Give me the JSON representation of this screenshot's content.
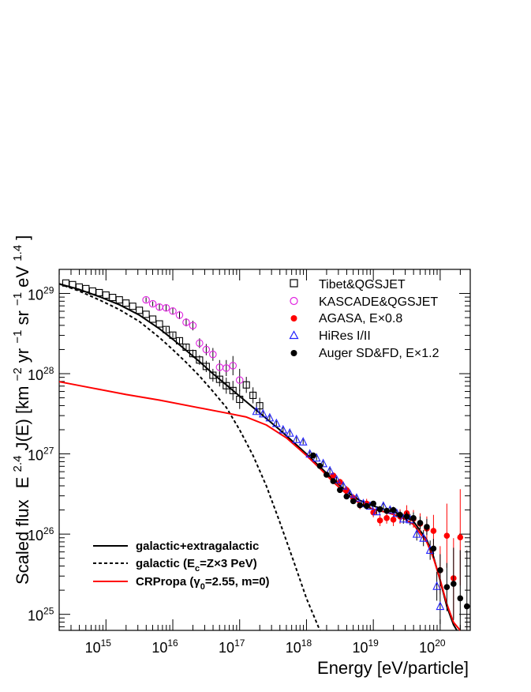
{
  "chart_data": {
    "type": "scatter",
    "title": "",
    "xlabel": "Energy [eV/particle]",
    "ylabel": "Scaled flux  E^2.4 J(E) [km^-2 yr^-1 sr^-1 eV^1.4]",
    "ylabel_parts": {
      "prefix": "Scaled flux",
      "e": "E",
      "e_exp": "2.4",
      "je": " J(E) [km",
      "km_exp": "−2",
      "yr": "yr",
      "yr_exp": "−1",
      "sr": "sr",
      "sr_exp": "−1",
      "ev": "eV",
      "ev_exp": "1.4",
      "close": "]"
    },
    "xlabel_log10_range": [
      14.3,
      20.45
    ],
    "ylabel_log10_range": [
      24.8,
      29.3
    ],
    "x_ticks": [
      {
        "base": "10",
        "exp": "15",
        "log10": 15
      },
      {
        "base": "10",
        "exp": "16",
        "log10": 16
      },
      {
        "base": "10",
        "exp": "17",
        "log10": 17
      },
      {
        "base": "10",
        "exp": "18",
        "log10": 18
      },
      {
        "base": "10",
        "exp": "19",
        "log10": 19
      },
      {
        "base": "10",
        "exp": "20",
        "log10": 20
      }
    ],
    "y_ticks": [
      {
        "base": "10",
        "exp": "25",
        "log10": 25
      },
      {
        "base": "10",
        "exp": "26",
        "log10": 26
      },
      {
        "base": "10",
        "exp": "27",
        "log10": 27
      },
      {
        "base": "10",
        "exp": "28",
        "log10": 28
      },
      {
        "base": "10",
        "exp": "29",
        "log10": 29
      }
    ],
    "legend_markers": {
      "placement": "top-right",
      "entries": [
        {
          "label": "Tibet&QGSJET",
          "marker": "open-square",
          "color": "#000000"
        },
        {
          "label": "KASCADE&QGSJET",
          "marker": "open-circle",
          "color": "#e020e0"
        },
        {
          "label": "AGASA, E×0.8",
          "marker": "filled-circle",
          "color": "#ff0000"
        },
        {
          "label": "HiRes I/II",
          "marker": "open-triangle",
          "color": "#2020ff"
        },
        {
          "label": "Auger SD&FD, E×1.2",
          "marker": "filled-circle",
          "color": "#000000"
        }
      ]
    },
    "legend_lines": {
      "placement": "bottom-left",
      "entries": [
        {
          "label": "galactic+extragalactic",
          "style": "solid",
          "color": "#000000"
        },
        {
          "label_parts": {
            "pre": "galactic (E",
            "sub": "c",
            "post": "=Z×3 PeV)"
          },
          "style": "dashed",
          "color": "#000000"
        },
        {
          "label_parts": {
            "pre": "CRPropa (",
            "gamma": "γ",
            "sub": "0",
            "post": "=2.55, m=0)"
          },
          "style": "solid",
          "color": "#ff0000"
        }
      ]
    },
    "curves": [
      {
        "name": "galactic+extragalactic",
        "color": "#000000",
        "style": "solid",
        "points": [
          [
            14.3,
            29.12
          ],
          [
            14.6,
            29.05
          ],
          [
            14.9,
            28.96
          ],
          [
            15.2,
            28.86
          ],
          [
            15.5,
            28.73
          ],
          [
            15.8,
            28.56
          ],
          [
            16.0,
            28.43
          ],
          [
            16.2,
            28.29
          ],
          [
            16.4,
            28.15
          ],
          [
            16.6,
            28.0
          ],
          [
            16.8,
            27.86
          ],
          [
            17.0,
            27.72
          ],
          [
            17.2,
            27.58
          ],
          [
            17.4,
            27.44
          ],
          [
            17.6,
            27.3
          ],
          [
            17.8,
            27.15
          ],
          [
            18.0,
            27.0
          ],
          [
            18.2,
            26.84
          ],
          [
            18.4,
            26.68
          ],
          [
            18.6,
            26.53
          ],
          [
            18.8,
            26.42
          ],
          [
            19.0,
            26.35
          ],
          [
            19.2,
            26.3
          ],
          [
            19.4,
            26.25
          ],
          [
            19.6,
            26.16
          ],
          [
            19.8,
            25.93
          ],
          [
            19.9,
            25.72
          ],
          [
            20.0,
            25.42
          ],
          [
            20.1,
            25.1
          ],
          [
            20.2,
            24.87
          ],
          [
            20.25,
            24.8
          ]
        ]
      },
      {
        "name": "galactic (Ec=Zx3 PeV)",
        "color": "#000000",
        "style": "dashed",
        "points": [
          [
            14.3,
            29.12
          ],
          [
            14.6,
            29.03
          ],
          [
            14.9,
            28.92
          ],
          [
            15.2,
            28.8
          ],
          [
            15.5,
            28.65
          ],
          [
            15.8,
            28.45
          ],
          [
            16.0,
            28.3
          ],
          [
            16.2,
            28.14
          ],
          [
            16.4,
            27.97
          ],
          [
            16.6,
            27.78
          ],
          [
            16.8,
            27.58
          ],
          [
            17.0,
            27.3
          ],
          [
            17.2,
            26.98
          ],
          [
            17.4,
            26.6
          ],
          [
            17.6,
            26.15
          ],
          [
            17.8,
            25.68
          ],
          [
            18.0,
            25.2
          ],
          [
            18.2,
            24.8
          ]
        ]
      },
      {
        "name": "CRPropa",
        "color": "#ff0000",
        "style": "solid",
        "points": [
          [
            14.3,
            27.9
          ],
          [
            14.8,
            27.82
          ],
          [
            15.3,
            27.74
          ],
          [
            15.8,
            27.67
          ],
          [
            16.3,
            27.59
          ],
          [
            16.8,
            27.51
          ],
          [
            17.1,
            27.46
          ],
          [
            17.4,
            27.36
          ],
          [
            17.7,
            27.2
          ],
          [
            18.0,
            26.98
          ],
          [
            18.2,
            26.82
          ],
          [
            18.4,
            26.65
          ],
          [
            18.6,
            26.5
          ],
          [
            18.8,
            26.38
          ],
          [
            19.0,
            26.31
          ],
          [
            19.2,
            26.27
          ],
          [
            19.4,
            26.22
          ],
          [
            19.6,
            26.12
          ],
          [
            19.8,
            25.9
          ],
          [
            19.9,
            25.7
          ],
          [
            20.0,
            25.43
          ],
          [
            20.1,
            25.13
          ],
          [
            20.2,
            24.9
          ],
          [
            20.3,
            24.8
          ]
        ]
      }
    ],
    "series": [
      {
        "name": "Tibet&QGSJET",
        "marker": "open-square",
        "color": "#000000",
        "points": [
          [
            14.4,
            29.13,
            0
          ],
          [
            14.5,
            29.11,
            0
          ],
          [
            14.6,
            29.08,
            0
          ],
          [
            14.7,
            29.06,
            0
          ],
          [
            14.8,
            29.03,
            0
          ],
          [
            14.9,
            29.01,
            0
          ],
          [
            15.0,
            28.98,
            0
          ],
          [
            15.1,
            28.95,
            0
          ],
          [
            15.2,
            28.92,
            0
          ],
          [
            15.3,
            28.88,
            0
          ],
          [
            15.4,
            28.84,
            0
          ],
          [
            15.5,
            28.79,
            0
          ],
          [
            15.6,
            28.74,
            0
          ],
          [
            15.7,
            28.68,
            0
          ],
          [
            15.8,
            28.62,
            0
          ],
          [
            15.9,
            28.55,
            0.03
          ],
          [
            16.0,
            28.48,
            0.03
          ],
          [
            16.1,
            28.41,
            0.04
          ],
          [
            16.2,
            28.33,
            0.04
          ],
          [
            16.3,
            28.25,
            0.05
          ],
          [
            16.4,
            28.17,
            0.06
          ],
          [
            16.5,
            28.09,
            0.07
          ],
          [
            16.6,
            27.98,
            0.08
          ],
          [
            16.7,
            27.93,
            0.09
          ],
          [
            16.8,
            27.85,
            0.1
          ],
          [
            16.9,
            27.79,
            0.12
          ],
          [
            17.0,
            27.68,
            0.12
          ],
          [
            17.1,
            27.86,
            0.1
          ],
          [
            17.2,
            27.73,
            0.1
          ],
          [
            17.3,
            27.6,
            0.1
          ]
        ]
      },
      {
        "name": "KASCADE&QGSJET",
        "marker": "open-circle",
        "color": "#e020e0",
        "points": [
          [
            15.6,
            28.92,
            0.03
          ],
          [
            15.7,
            28.87,
            0.03
          ],
          [
            15.8,
            28.83,
            0.04
          ],
          [
            15.9,
            28.82,
            0.04
          ],
          [
            16.0,
            28.78,
            0.04
          ],
          [
            16.1,
            28.73,
            0.05
          ],
          [
            16.2,
            28.64,
            0.05
          ],
          [
            16.3,
            28.6,
            0.06
          ],
          [
            16.4,
            28.38,
            0.06
          ],
          [
            16.5,
            28.3,
            0.07
          ],
          [
            16.6,
            28.24,
            0.08
          ],
          [
            16.7,
            28.08,
            0.09
          ],
          [
            16.8,
            28.07,
            0.1
          ],
          [
            16.9,
            28.1,
            0.12
          ],
          [
            17.0,
            27.92,
            0.14
          ]
        ]
      },
      {
        "name": "AGASA, E×0.8",
        "marker": "filled-circle",
        "color": "#ff0000",
        "points": [
          [
            18.4,
            26.73,
            0.04
          ],
          [
            18.5,
            26.65,
            0.04
          ],
          [
            18.6,
            26.55,
            0.05
          ],
          [
            18.7,
            26.45,
            0.05
          ],
          [
            18.8,
            26.36,
            0.05
          ],
          [
            18.9,
            26.38,
            0.06
          ],
          [
            19.0,
            26.27,
            0.06
          ],
          [
            19.1,
            26.17,
            0.07
          ],
          [
            19.2,
            26.2,
            0.07
          ],
          [
            19.3,
            26.18,
            0.08
          ],
          [
            19.4,
            26.22,
            0.09
          ],
          [
            19.5,
            26.26,
            0.1
          ],
          [
            19.6,
            26.19,
            0.11
          ],
          [
            19.7,
            26.13,
            0.13
          ],
          [
            19.8,
            26.07,
            0.15
          ],
          [
            19.9,
            26.04,
            0.2
          ],
          [
            20.0,
            25.55,
            0.3
          ],
          [
            20.1,
            25.98,
            0.4
          ],
          [
            20.2,
            25.45,
            0.5
          ],
          [
            20.3,
            25.96,
            0.6
          ]
        ]
      },
      {
        "name": "HiRes I/II",
        "marker": "open-triangle",
        "color": "#2020ff",
        "points": [
          [
            17.25,
            27.53,
            0.04
          ],
          [
            17.35,
            27.5,
            0.03
          ],
          [
            17.45,
            27.45,
            0.03
          ],
          [
            17.55,
            27.38,
            0.03
          ],
          [
            17.65,
            27.3,
            0.03
          ],
          [
            17.75,
            27.26,
            0.03
          ],
          [
            17.85,
            27.18,
            0.03
          ],
          [
            17.95,
            27.15,
            0.03
          ],
          [
            18.05,
            27.0,
            0.03
          ],
          [
            18.15,
            26.95,
            0.03
          ],
          [
            18.25,
            26.88,
            0.03
          ],
          [
            18.35,
            26.79,
            0.03
          ],
          [
            18.45,
            26.68,
            0.03
          ],
          [
            18.55,
            26.6,
            0.03
          ],
          [
            18.65,
            26.5,
            0.03
          ],
          [
            18.75,
            26.45,
            0.03
          ],
          [
            18.85,
            26.38,
            0.04
          ],
          [
            18.95,
            26.35,
            0.04
          ],
          [
            19.05,
            26.28,
            0.04
          ],
          [
            19.15,
            26.35,
            0.04
          ],
          [
            19.25,
            26.3,
            0.05
          ],
          [
            19.35,
            26.26,
            0.05
          ],
          [
            19.45,
            26.19,
            0.06
          ],
          [
            19.55,
            26.18,
            0.07
          ],
          [
            19.65,
            26.0,
            0.08
          ],
          [
            19.75,
            25.95,
            0.1
          ],
          [
            19.85,
            25.8,
            0.12
          ],
          [
            19.95,
            25.35,
            0.18
          ],
          [
            20.0,
            25.1,
            0.22
          ]
        ]
      },
      {
        "name": "Auger SD&FD, E×1.2",
        "marker": "filled-circle",
        "color": "#000000",
        "points": [
          [
            18.1,
            26.98,
            0.03
          ],
          [
            18.2,
            26.85,
            0.03
          ],
          [
            18.3,
            26.74,
            0.03
          ],
          [
            18.4,
            26.66,
            0.03
          ],
          [
            18.5,
            26.55,
            0.03
          ],
          [
            18.6,
            26.47,
            0.03
          ],
          [
            18.7,
            26.41,
            0.03
          ],
          [
            18.8,
            26.36,
            0.03
          ],
          [
            18.9,
            26.35,
            0.03
          ],
          [
            19.0,
            26.38,
            0.03
          ],
          [
            19.1,
            26.31,
            0.04
          ],
          [
            19.2,
            26.29,
            0.04
          ],
          [
            19.3,
            26.3,
            0.04
          ],
          [
            19.4,
            26.24,
            0.05
          ],
          [
            19.5,
            26.22,
            0.06
          ],
          [
            19.6,
            26.2,
            0.07
          ],
          [
            19.7,
            26.14,
            0.08
          ],
          [
            19.8,
            26.09,
            0.1
          ],
          [
            19.9,
            25.82,
            0.12
          ],
          [
            20.0,
            25.55,
            0.2
          ],
          [
            20.1,
            25.34,
            0.3
          ],
          [
            20.2,
            25.38,
            0.45
          ],
          [
            20.3,
            25.2,
            0.6
          ],
          [
            20.4,
            25.1,
            0.7
          ]
        ]
      }
    ]
  }
}
